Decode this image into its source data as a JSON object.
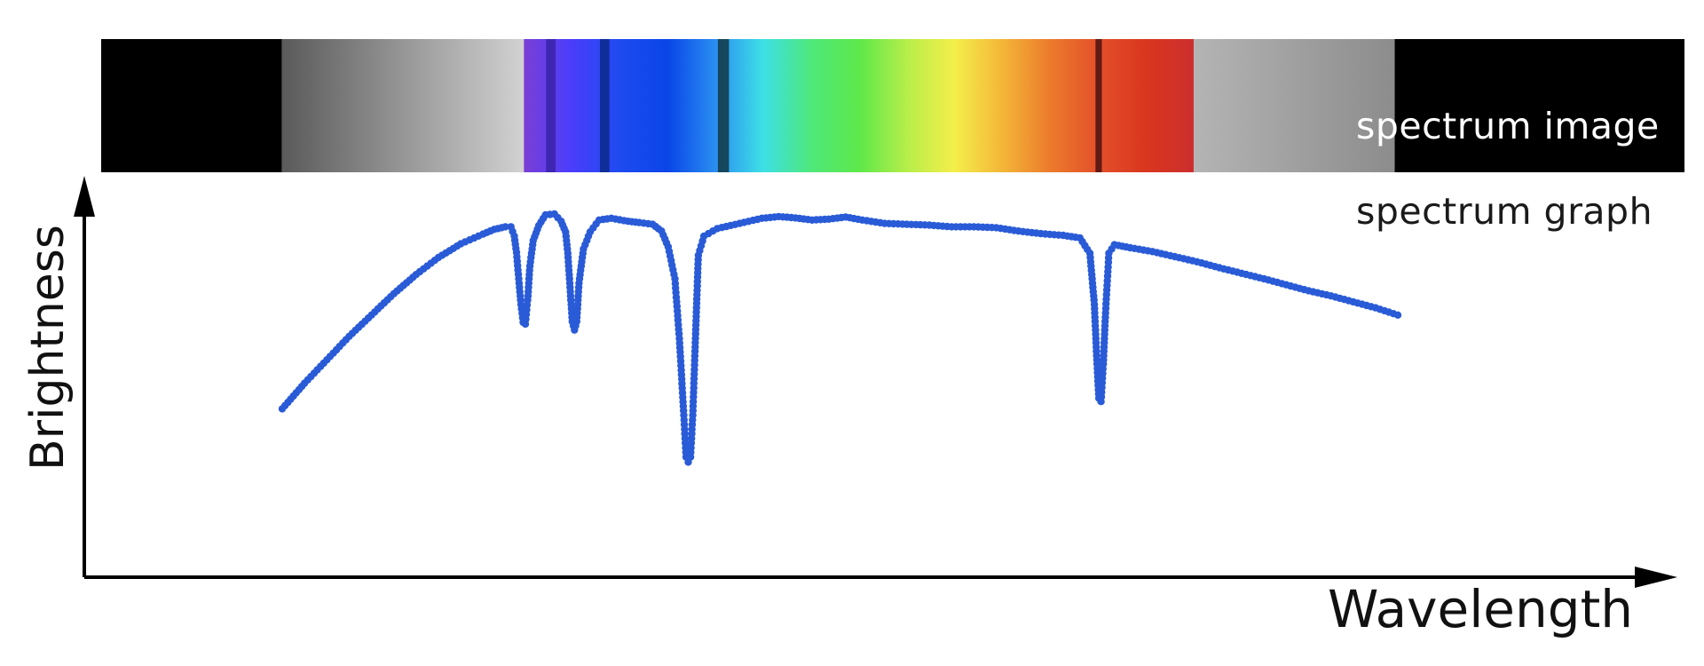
{
  "labels": {
    "spectrum_image": "spectrum image",
    "spectrum_graph": "spectrum graph",
    "x_axis": "Wavelength",
    "y_axis": "Brightness"
  },
  "colors": {
    "graph_line": "#2a5bd7",
    "graph_marker": "#2a5bd7",
    "axis": "#000000",
    "background": "#ffffff",
    "strip_black": "#000000"
  },
  "spectrum_strip": {
    "segments": [
      {
        "from": 0.0,
        "to": 0.114,
        "type": "solid",
        "color": "#000000"
      },
      {
        "from": 0.114,
        "to": 0.267,
        "type": "gradient",
        "colors": [
          "#5a5a5a",
          "#d2d2d2"
        ]
      },
      {
        "from": 0.267,
        "to": 0.69,
        "type": "gradient",
        "colors": [
          "#7a3fd6",
          "#4a3dfb",
          "#1e4bf0",
          "#0a45e8",
          "#2a8ef0",
          "#3de0e6",
          "#4fe87a",
          "#5de84a",
          "#b6ee4a",
          "#f5ee4a",
          "#f3b638",
          "#ec7a2c",
          "#e3502a",
          "#d9361e",
          "#cc2e2e"
        ]
      },
      {
        "from": 0.69,
        "to": 0.817,
        "type": "gradient",
        "colors": [
          "#b4b4b4",
          "#8c8c8c"
        ]
      },
      {
        "from": 0.817,
        "to": 1.0,
        "type": "solid",
        "color": "#000000"
      }
    ],
    "absorption_lines": [
      {
        "position": 0.284,
        "width": 0.006,
        "color": "#3a22a8"
      },
      {
        "position": 0.318,
        "width": 0.006,
        "color": "#0a2a8a"
      },
      {
        "position": 0.393,
        "width": 0.007,
        "color": "#123844"
      },
      {
        "position": 0.63,
        "width": 0.004,
        "color": "#4a1210"
      }
    ]
  },
  "graph_curve": [
    [
      0.0,
      0.395
    ],
    [
      0.02,
      0.455
    ],
    [
      0.04,
      0.51
    ],
    [
      0.06,
      0.565
    ],
    [
      0.08,
      0.615
    ],
    [
      0.1,
      0.665
    ],
    [
      0.12,
      0.71
    ],
    [
      0.14,
      0.75
    ],
    [
      0.16,
      0.782
    ],
    [
      0.18,
      0.805
    ],
    [
      0.19,
      0.816
    ],
    [
      0.2,
      0.822
    ],
    [
      0.205,
      0.822
    ],
    [
      0.208,
      0.8
    ],
    [
      0.21,
      0.762
    ],
    [
      0.212,
      0.7
    ],
    [
      0.214,
      0.64
    ],
    [
      0.216,
      0.598
    ],
    [
      0.218,
      0.594
    ],
    [
      0.22,
      0.65
    ],
    [
      0.222,
      0.73
    ],
    [
      0.225,
      0.79
    ],
    [
      0.23,
      0.825
    ],
    [
      0.236,
      0.85
    ],
    [
      0.244,
      0.852
    ],
    [
      0.25,
      0.835
    ],
    [
      0.254,
      0.81
    ],
    [
      0.256,
      0.76
    ],
    [
      0.258,
      0.68
    ],
    [
      0.26,
      0.6
    ],
    [
      0.262,
      0.58
    ],
    [
      0.264,
      0.6
    ],
    [
      0.266,
      0.69
    ],
    [
      0.27,
      0.77
    ],
    [
      0.276,
      0.81
    ],
    [
      0.284,
      0.838
    ],
    [
      0.295,
      0.842
    ],
    [
      0.31,
      0.835
    ],
    [
      0.32,
      0.832
    ],
    [
      0.332,
      0.828
    ],
    [
      0.34,
      0.812
    ],
    [
      0.346,
      0.775
    ],
    [
      0.352,
      0.7
    ],
    [
      0.356,
      0.56
    ],
    [
      0.36,
      0.38
    ],
    [
      0.362,
      0.282
    ],
    [
      0.364,
      0.27
    ],
    [
      0.366,
      0.282
    ],
    [
      0.368,
      0.38
    ],
    [
      0.37,
      0.53
    ],
    [
      0.373,
      0.755
    ],
    [
      0.378,
      0.8
    ],
    [
      0.39,
      0.818
    ],
    [
      0.41,
      0.83
    ],
    [
      0.43,
      0.842
    ],
    [
      0.445,
      0.846
    ],
    [
      0.46,
      0.843
    ],
    [
      0.475,
      0.838
    ],
    [
      0.49,
      0.84
    ],
    [
      0.505,
      0.845
    ],
    [
      0.52,
      0.838
    ],
    [
      0.54,
      0.83
    ],
    [
      0.56,
      0.828
    ],
    [
      0.58,
      0.826
    ],
    [
      0.6,
      0.822
    ],
    [
      0.62,
      0.822
    ],
    [
      0.64,
      0.82
    ],
    [
      0.66,
      0.812
    ],
    [
      0.68,
      0.806
    ],
    [
      0.7,
      0.802
    ],
    [
      0.715,
      0.796
    ],
    [
      0.724,
      0.76
    ],
    [
      0.728,
      0.64
    ],
    [
      0.73,
      0.52
    ],
    [
      0.732,
      0.42
    ],
    [
      0.734,
      0.412
    ],
    [
      0.736,
      0.5
    ],
    [
      0.738,
      0.62
    ],
    [
      0.741,
      0.76
    ],
    [
      0.746,
      0.78
    ],
    [
      0.76,
      0.773
    ],
    [
      0.78,
      0.764
    ],
    [
      0.8,
      0.752
    ],
    [
      0.82,
      0.74
    ],
    [
      0.84,
      0.726
    ],
    [
      0.86,
      0.713
    ],
    [
      0.88,
      0.7
    ],
    [
      0.9,
      0.686
    ],
    [
      0.92,
      0.672
    ],
    [
      0.94,
      0.66
    ],
    [
      0.96,
      0.646
    ],
    [
      0.98,
      0.632
    ],
    [
      1.0,
      0.615
    ]
  ]
}
